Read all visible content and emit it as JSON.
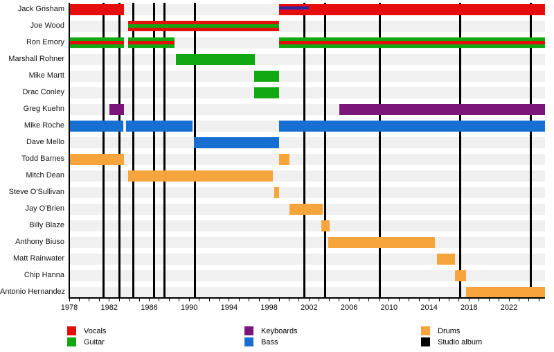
{
  "chart_data": {
    "type": "timeline",
    "title": "Band members timeline (Gantt-style, Wikipedia EasyTimeline look)",
    "axis": {
      "start": 1978,
      "end": 2025.6,
      "tick_interval_years": 1,
      "label_interval_years": 4,
      "tick_labels": [
        "1978",
        "1982",
        "1986",
        "1990",
        "1994",
        "1998",
        "2002",
        "2006",
        "2010",
        "2014",
        "2018",
        "2022"
      ],
      "grid": "off",
      "legend_position": "bottom"
    },
    "colors": {
      "vocals": "#e60d0d",
      "guitar": "#12a812",
      "keyboards": "#7a157a",
      "bass": "#1770d1",
      "drums": "#f6a43c",
      "album": "#000000",
      "track_background": "#f0f0f0",
      "overlay_fill": "#2b2b9e",
      "overlay_edge": "#7a157a"
    },
    "members": [
      {
        "name": "Jack Grisham",
        "stripe_roles": [
          "vocals"
        ],
        "segments": [
          [
            1978,
            1983.5
          ],
          [
            1999,
            2025.6
          ]
        ],
        "overlay": {
          "start": 1999,
          "end": 2002
        }
      },
      {
        "name": "Joe Wood",
        "stripe_roles": [
          "vocals",
          "guitar",
          "vocals"
        ],
        "segments": [
          [
            1983.9,
            1999
          ]
        ]
      },
      {
        "name": "Ron Emory",
        "stripe_roles": [
          "guitar",
          "vocals",
          "guitar"
        ],
        "segments": [
          [
            1978,
            1983.5
          ],
          [
            1983.9,
            1988.5
          ],
          [
            1999,
            2025.6
          ]
        ]
      },
      {
        "name": "Marshall Rohner",
        "stripe_roles": [
          "guitar"
        ],
        "segments": [
          [
            1988.7,
            1996.6
          ]
        ]
      },
      {
        "name": "Mike Martt",
        "stripe_roles": [
          "guitar"
        ],
        "segments": [
          [
            1996.5,
            1999
          ]
        ]
      },
      {
        "name": "Drac Conley",
        "stripe_roles": [
          "guitar"
        ],
        "segments": [
          [
            1996.5,
            1999
          ]
        ]
      },
      {
        "name": "Greg Kuehn",
        "stripe_roles": [
          "keyboards"
        ],
        "segments": [
          [
            1982,
            1983.5
          ],
          [
            2005,
            2025.6
          ]
        ]
      },
      {
        "name": "Mike Roche",
        "stripe_roles": [
          "bass"
        ],
        "segments": [
          [
            1978,
            1983.4
          ],
          [
            1983.65,
            1990.3
          ],
          [
            1999,
            2025.6
          ]
        ]
      },
      {
        "name": "Dave Mello",
        "stripe_roles": [
          "bass"
        ],
        "segments": [
          [
            1990.5,
            1999
          ]
        ]
      },
      {
        "name": "Todd Barnes",
        "stripe_roles": [
          "drums"
        ],
        "segments": [
          [
            1978,
            1983.5
          ],
          [
            1999,
            2000
          ]
        ]
      },
      {
        "name": "Mitch Dean",
        "stripe_roles": [
          "drums"
        ],
        "segments": [
          [
            1983.9,
            1998.4
          ]
        ]
      },
      {
        "name": "Steve O'Sullivan",
        "stripe_roles": [
          "drums"
        ],
        "segments": [
          [
            1998.5,
            1999
          ]
        ]
      },
      {
        "name": "Jay O'Brien",
        "stripe_roles": [
          "drums"
        ],
        "segments": [
          [
            2000,
            2003.35
          ]
        ]
      },
      {
        "name": "Billy Blaze",
        "stripe_roles": [
          "drums"
        ],
        "segments": [
          [
            2003.2,
            2004.05
          ]
        ]
      },
      {
        "name": "Anthony Biuso",
        "stripe_roles": [
          "drums"
        ],
        "segments": [
          [
            2003.9,
            2014.6
          ]
        ]
      },
      {
        "name": "Matt Rainwater",
        "stripe_roles": [
          "drums"
        ],
        "segments": [
          [
            2014.8,
            2016.6
          ]
        ]
      },
      {
        "name": "Chip Hanna",
        "stripe_roles": [
          "drums"
        ],
        "segments": [
          [
            2016.6,
            2017.7
          ]
        ]
      },
      {
        "name": "Antonio Hernandez",
        "stripe_roles": [
          "drums"
        ],
        "segments": [
          [
            2017.7,
            2025.6
          ]
        ]
      }
    ],
    "albums_years": [
      1981.4,
      1983.0,
      1984.4,
      1986.5,
      1987.5,
      1990.6,
      2001.5,
      2003.6,
      2009.1,
      2017.1,
      2024.2
    ],
    "legend": [
      {
        "label": "Vocals",
        "role": "vocals"
      },
      {
        "label": "Guitar",
        "role": "guitar"
      },
      {
        "label": "Keyboards",
        "role": "keyboards"
      },
      {
        "label": "Bass",
        "role": "bass"
      },
      {
        "label": "Drums",
        "role": "drums"
      },
      {
        "label": "Studio album",
        "role": "album"
      }
    ]
  }
}
